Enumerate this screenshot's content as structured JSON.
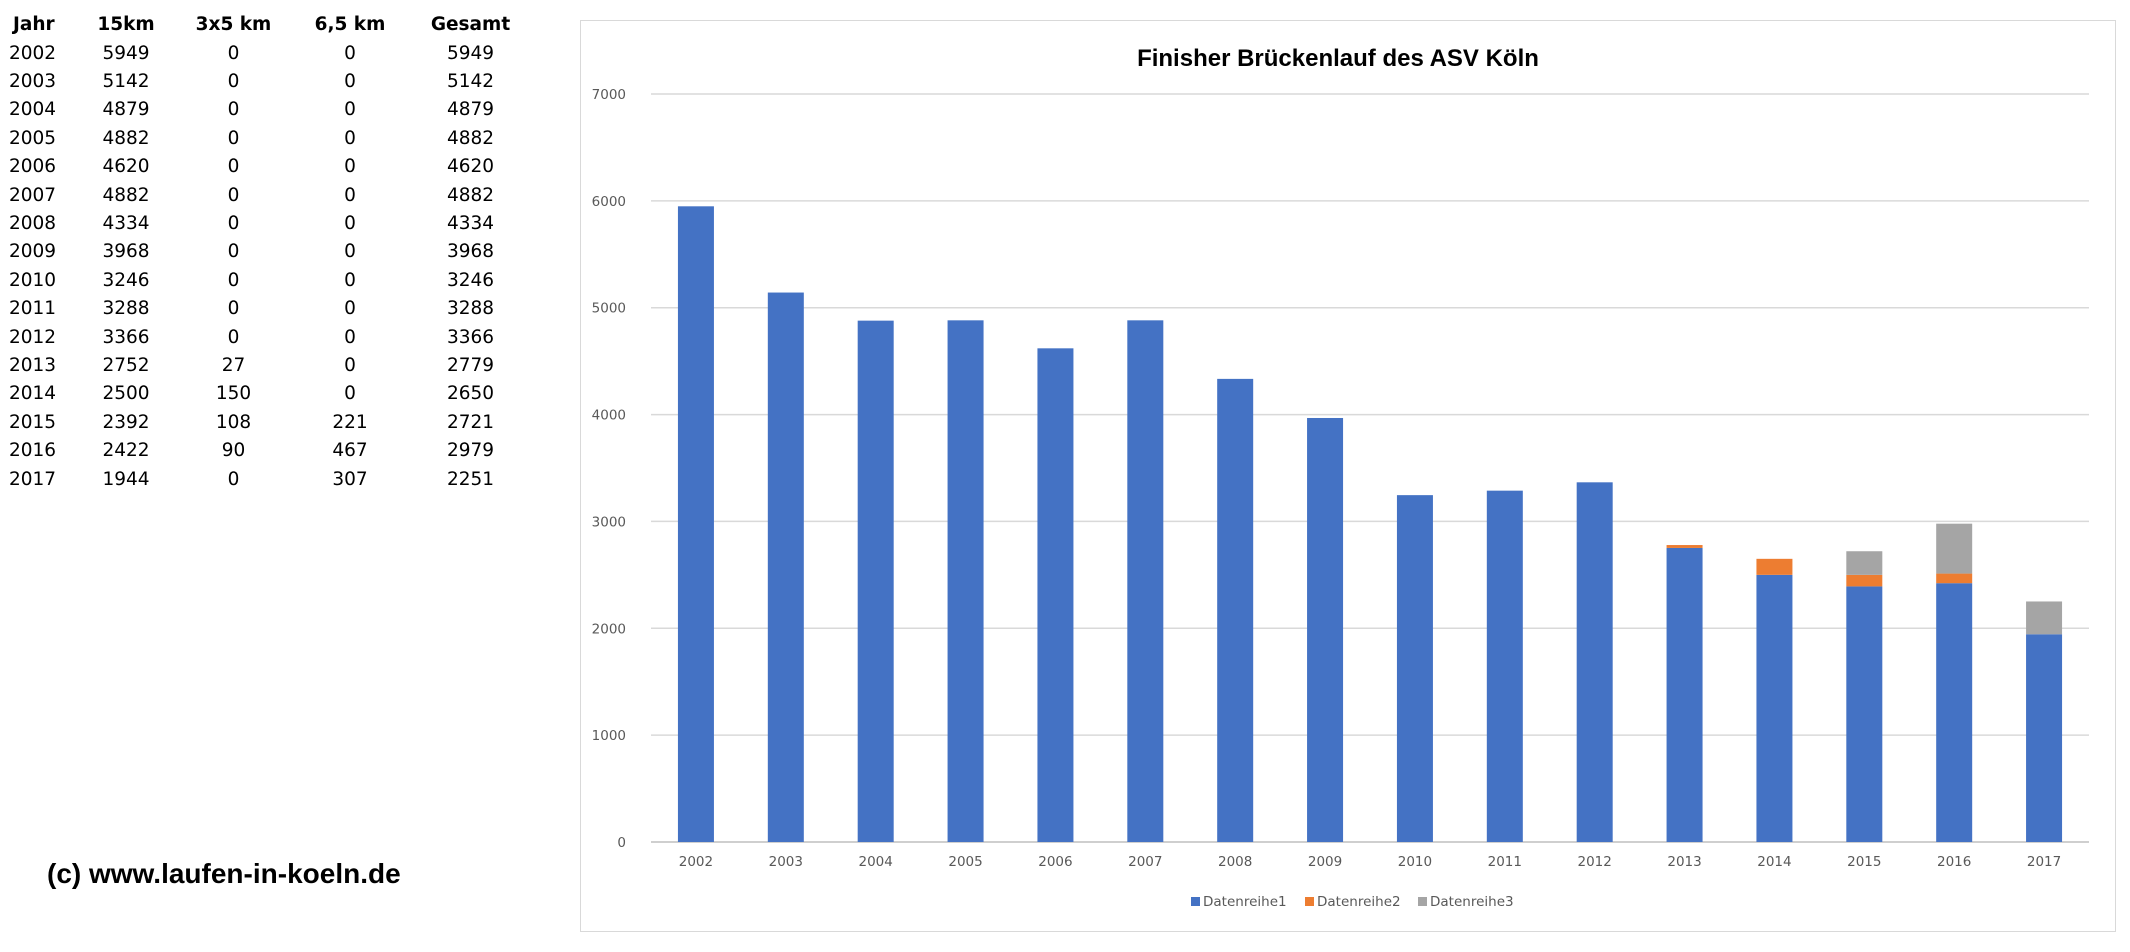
{
  "table": {
    "headers": [
      "Jahr",
      "15km",
      "3x5 km",
      "6,5 km",
      "Gesamt"
    ],
    "rows": [
      [
        "2002",
        "5949",
        "0",
        "0",
        "5949"
      ],
      [
        "2003",
        "5142",
        "0",
        "0",
        "5142"
      ],
      [
        "2004",
        "4879",
        "0",
        "0",
        "4879"
      ],
      [
        "2005",
        "4882",
        "0",
        "0",
        "4882"
      ],
      [
        "2006",
        "4620",
        "0",
        "0",
        "4620"
      ],
      [
        "2007",
        "4882",
        "0",
        "0",
        "4882"
      ],
      [
        "2008",
        "4334",
        "0",
        "0",
        "4334"
      ],
      [
        "2009",
        "3968",
        "0",
        "0",
        "3968"
      ],
      [
        "2010",
        "3246",
        "0",
        "0",
        "3246"
      ],
      [
        "2011",
        "3288",
        "0",
        "0",
        "3288"
      ],
      [
        "2012",
        "3366",
        "0",
        "0",
        "3366"
      ],
      [
        "2013",
        "2752",
        "27",
        "0",
        "2779"
      ],
      [
        "2014",
        "2500",
        "150",
        "0",
        "2650"
      ],
      [
        "2015",
        "2392",
        "108",
        "221",
        "2721"
      ],
      [
        "2016",
        "2422",
        "90",
        "467",
        "2979"
      ],
      [
        "2017",
        "1944",
        "0",
        "307",
        "2251"
      ]
    ]
  },
  "copyright": "(c) www.laufen-in-koeln.de",
  "chart_data": {
    "type": "bar",
    "stacked": true,
    "title": "Finisher Brückenlauf des ASV Köln",
    "xlabel": "",
    "ylabel": "",
    "categories": [
      "2002",
      "2003",
      "2004",
      "2005",
      "2006",
      "2007",
      "2008",
      "2009",
      "2010",
      "2011",
      "2012",
      "2013",
      "2014",
      "2015",
      "2016",
      "2017"
    ],
    "series": [
      {
        "name": "Datenreihe1",
        "color": "#4472c4",
        "values": [
          5949,
          5142,
          4879,
          4882,
          4620,
          4882,
          4334,
          3968,
          3246,
          3288,
          3366,
          2752,
          2500,
          2392,
          2422,
          1944
        ]
      },
      {
        "name": "Datenreihe2",
        "color": "#ed7d31",
        "values": [
          0,
          0,
          0,
          0,
          0,
          0,
          0,
          0,
          0,
          0,
          0,
          27,
          150,
          108,
          90,
          0
        ]
      },
      {
        "name": "Datenreihe3",
        "color": "#a5a5a5",
        "values": [
          0,
          0,
          0,
          0,
          0,
          0,
          0,
          0,
          0,
          0,
          0,
          0,
          0,
          221,
          467,
          307
        ]
      }
    ],
    "ylim": [
      0,
      7000
    ],
    "yticks": [
      0,
      1000,
      2000,
      3000,
      4000,
      5000,
      6000,
      7000
    ],
    "grid": true,
    "legend": "bottom"
  }
}
